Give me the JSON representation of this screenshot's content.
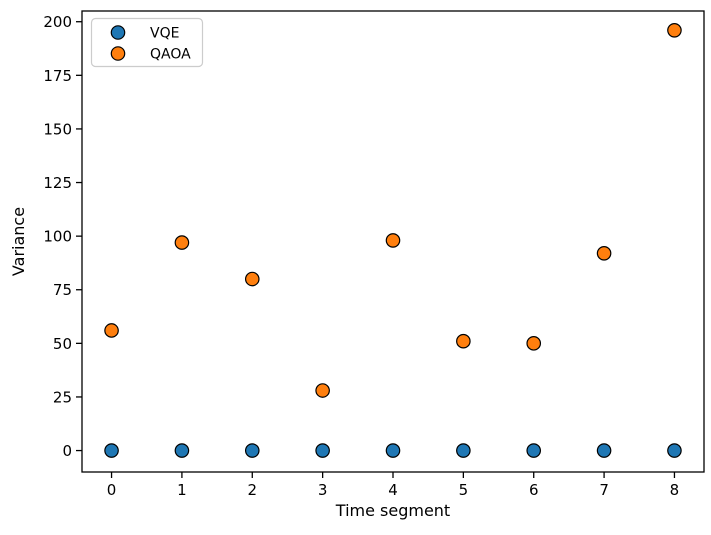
{
  "figure": {
    "background_color": "#ffffff",
    "text_color": "#000000"
  },
  "chart_data": {
    "type": "scatter",
    "title": "",
    "xlabel": "Time segment",
    "ylabel": "Variance",
    "x": [
      0,
      1,
      2,
      3,
      4,
      5,
      6,
      7,
      8
    ],
    "series": [
      {
        "name": "VQE",
        "color": "#1f77b4",
        "values": [
          0,
          0,
          0,
          0,
          0,
          0,
          0,
          0,
          0
        ]
      },
      {
        "name": "QAOA",
        "color": "#ff7f0e",
        "values": [
          56,
          97,
          80,
          28,
          98,
          51,
          50,
          92,
          196
        ]
      }
    ],
    "marker": {
      "shape": "circle",
      "edge_color": "#000000",
      "radius_px": 6.7
    },
    "xticks": [
      0,
      1,
      2,
      3,
      4,
      5,
      6,
      7,
      8
    ],
    "yticks": [
      0,
      25,
      50,
      75,
      100,
      125,
      150,
      175,
      200
    ],
    "xlim": [
      -0.42,
      8.42
    ],
    "ylim": [
      -10,
      205
    ],
    "grid": false,
    "legend": {
      "position": "upper left",
      "frame_color": "#cccccc",
      "background": "#ffffff",
      "entries": [
        "VQE",
        "QAOA"
      ]
    }
  }
}
